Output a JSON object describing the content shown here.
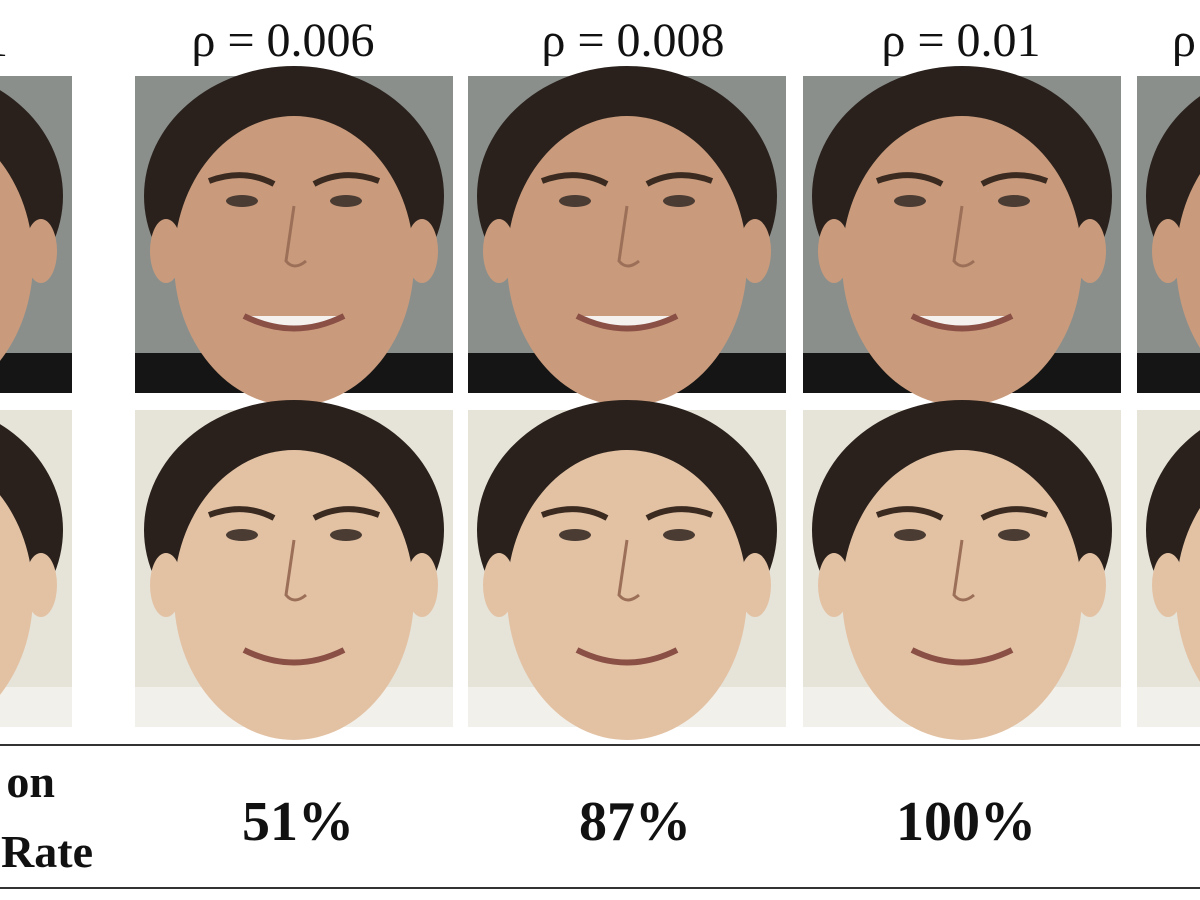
{
  "header": {
    "columns": [
      "1",
      "ρ = 0.006",
      "ρ = 0.008",
      "ρ = 0.01",
      "ρ"
    ]
  },
  "footer": {
    "row_label": [
      "on",
      "Rate"
    ],
    "values": [
      "51%",
      "87%",
      "100%"
    ]
  }
}
